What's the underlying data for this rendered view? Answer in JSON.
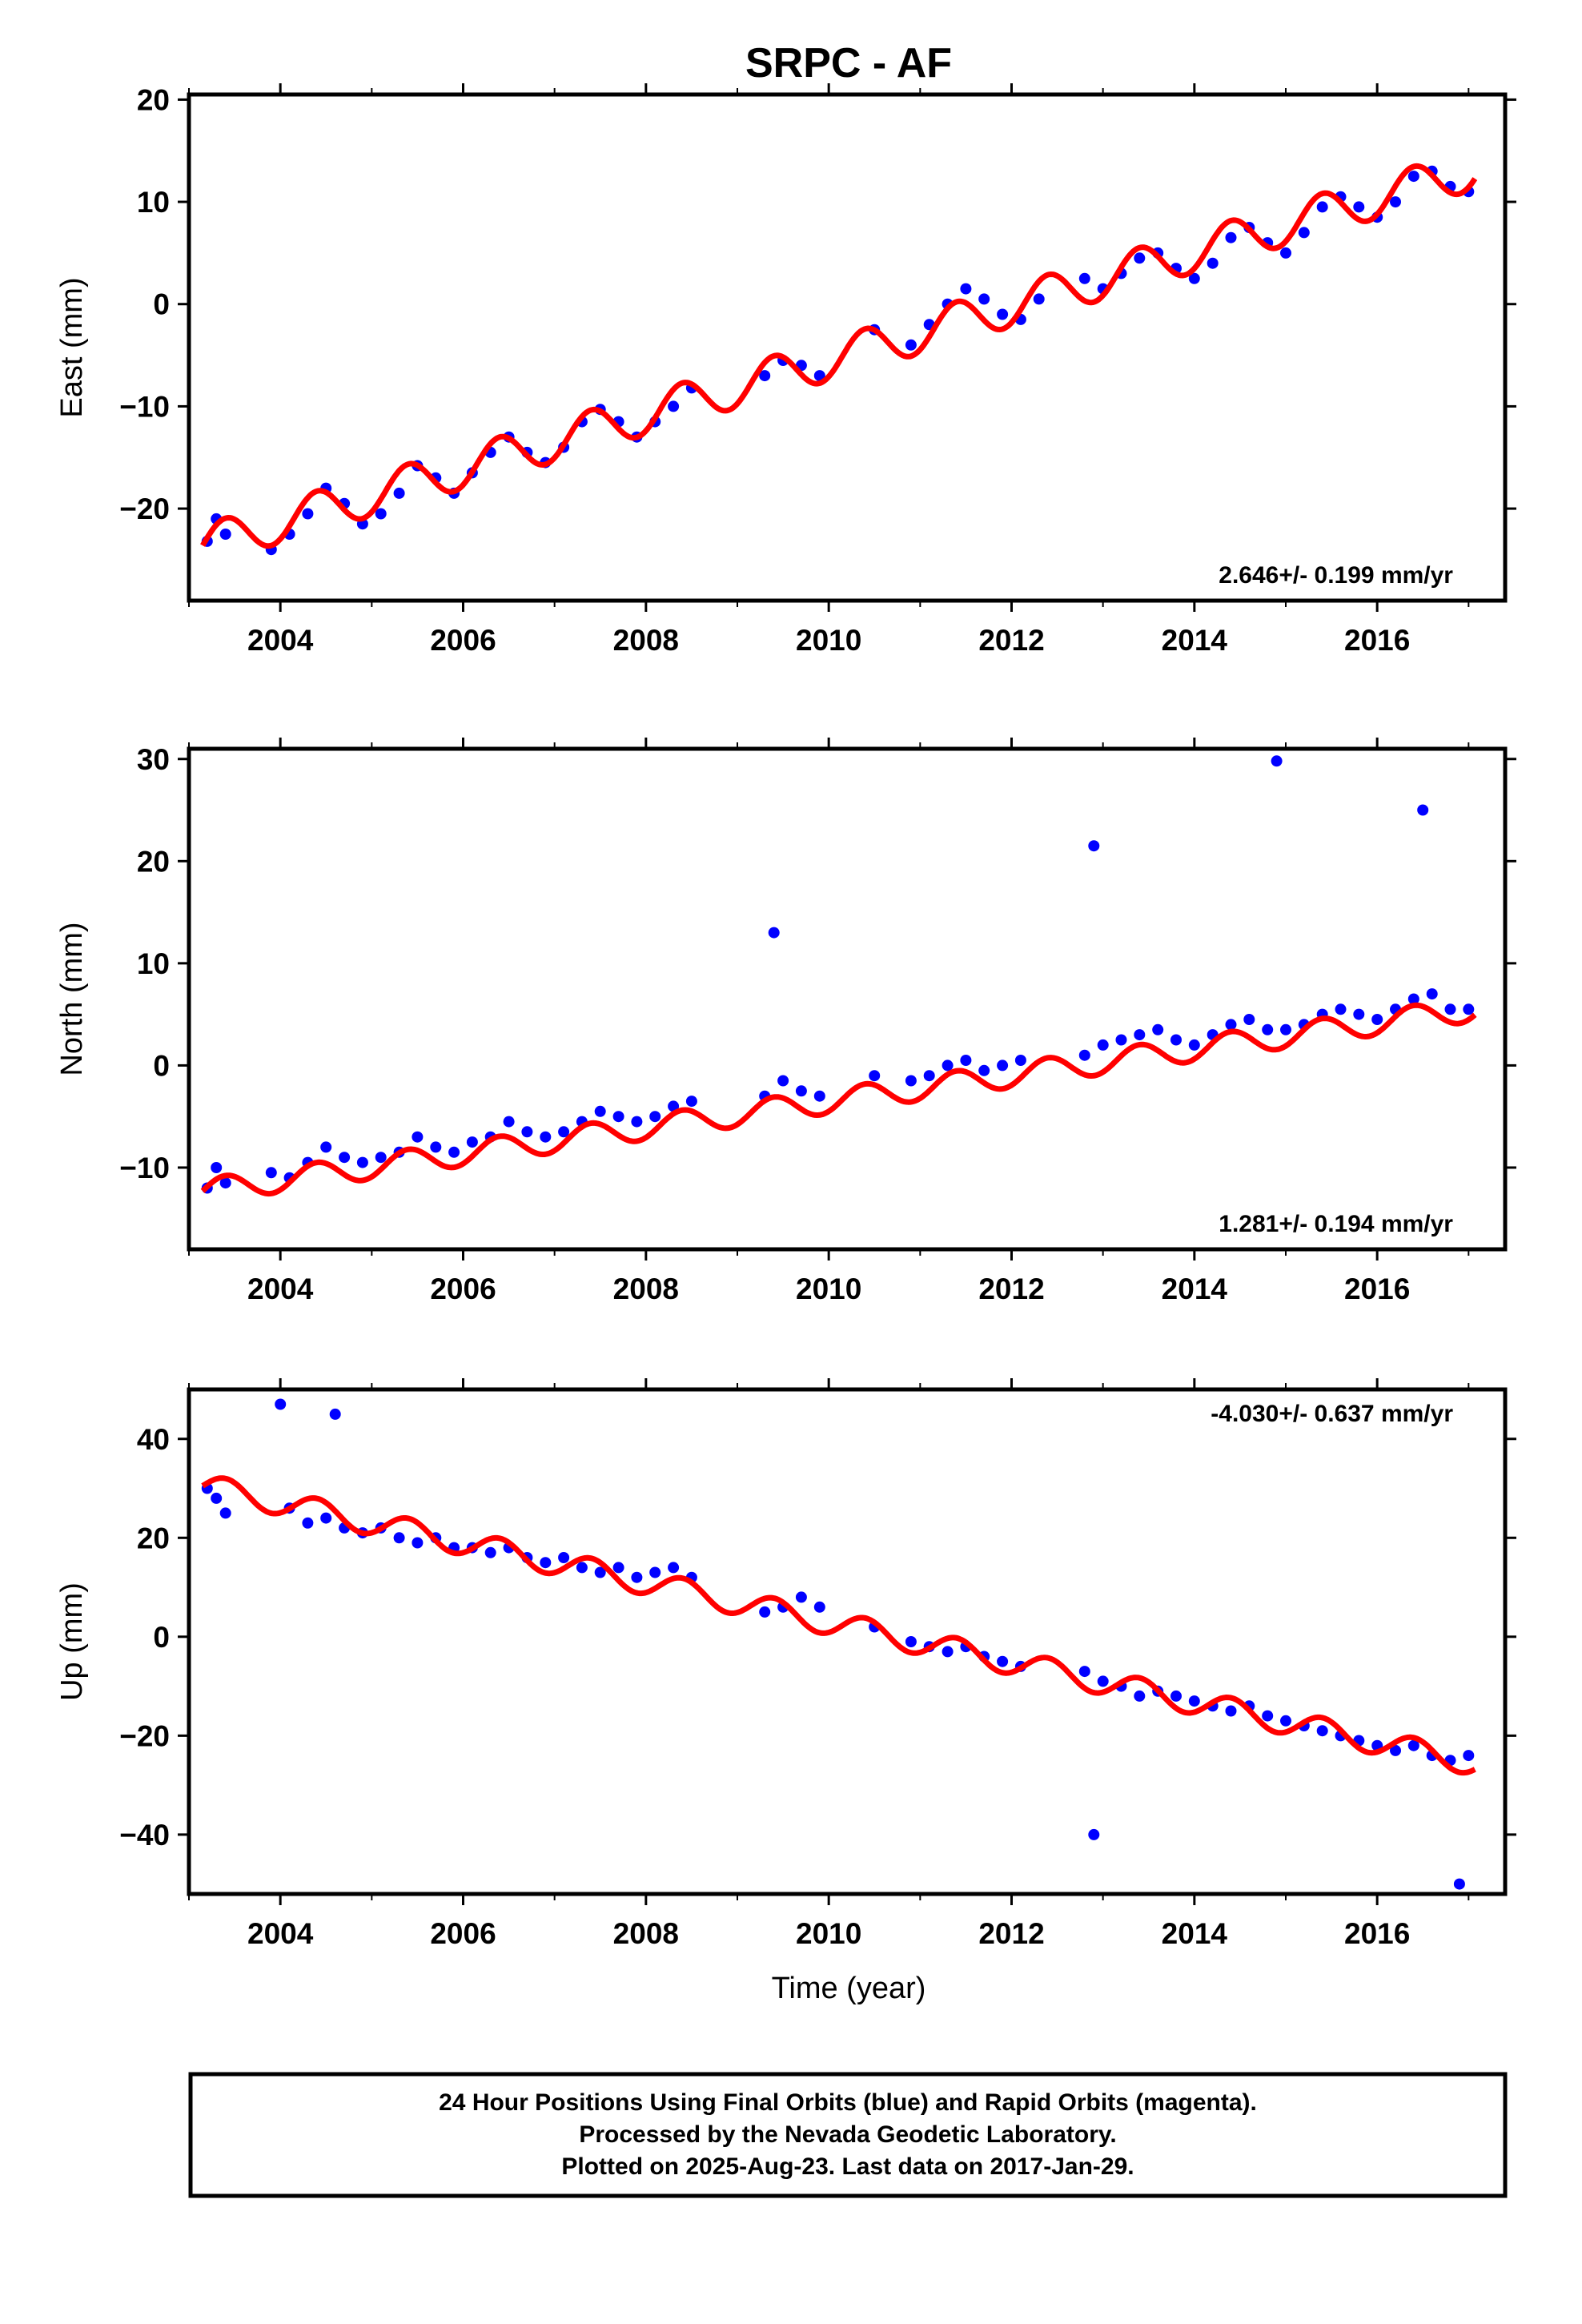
{
  "chart_data": {
    "title": "SRPC - AF",
    "type": "scatter",
    "xlabel": "Time (year)",
    "xlim": [
      2003.0,
      2017.4
    ],
    "x_ticks": [
      2004,
      2006,
      2008,
      2010,
      2012,
      2014,
      2016
    ],
    "x_tick_labels": [
      "2004",
      "2006",
      "2008",
      "2010",
      "2012",
      "2014",
      "2016"
    ],
    "colors": {
      "points": "#0000ff",
      "fit": "#ff0000",
      "axis": "#000000"
    },
    "footer": [
      "24 Hour Positions Using Final Orbits (blue) and Rapid Orbits (magenta).",
      "Processed by the Nevada Geodetic Laboratory.",
      "Plotted on 2025-Aug-23. Last data on 2017-Jan-29."
    ],
    "panels": [
      {
        "ylabel": "East (mm)",
        "ylim": [
          -29,
          20.5
        ],
        "y_ticks": [
          -20,
          -10,
          0,
          10,
          20
        ],
        "y_tick_labels": [
          "−20",
          "−10",
          "0",
          "10",
          "20"
        ],
        "rate_label": "2.646+/- 0.199 mm/yr",
        "rate_position": "bottom-right",
        "series": [
          {
            "name": "daily positions",
            "x": [
              2003.2,
              2003.3,
              2003.4,
              2003.9,
              2004.1,
              2004.3,
              2004.5,
              2004.7,
              2004.9,
              2005.1,
              2005.3,
              2005.5,
              2005.7,
              2005.9,
              2006.1,
              2006.3,
              2006.5,
              2006.7,
              2006.9,
              2007.1,
              2007.3,
              2007.5,
              2007.7,
              2007.9,
              2008.1,
              2008.3,
              2008.5,
              2009.3,
              2009.5,
              2009.7,
              2009.9,
              2010.5,
              2010.9,
              2011.1,
              2011.3,
              2011.5,
              2011.7,
              2011.9,
              2012.1,
              2012.3,
              2012.8,
              2013.0,
              2013.2,
              2013.4,
              2013.6,
              2013.8,
              2014.0,
              2014.2,
              2014.4,
              2014.6,
              2014.8,
              2015.0,
              2015.2,
              2015.4,
              2015.6,
              2015.8,
              2016.0,
              2016.2,
              2016.4,
              2016.6,
              2016.8,
              2017.0
            ],
            "y": [
              -23.2,
              -21.0,
              -22.5,
              -24.0,
              -22.5,
              -20.5,
              -18.0,
              -19.5,
              -21.5,
              -20.5,
              -18.5,
              -15.8,
              -17.0,
              -18.5,
              -16.5,
              -14.5,
              -13.0,
              -14.5,
              -15.5,
              -14.0,
              -11.5,
              -10.3,
              -11.5,
              -13.0,
              -11.5,
              -10.0,
              -8.2,
              -7.0,
              -5.5,
              -6.0,
              -7.0,
              -2.5,
              -4.0,
              -2.0,
              0.0,
              1.5,
              0.5,
              -1.0,
              -1.5,
              0.5,
              2.5,
              1.5,
              3.0,
              4.5,
              5.0,
              3.5,
              2.5,
              4.0,
              6.5,
              7.5,
              6.0,
              5.0,
              7.0,
              9.5,
              10.5,
              9.5,
              8.5,
              10.0,
              12.5,
              13.0,
              11.5,
              11.0
            ]
          },
          {
            "name": "model fit",
            "slope": 2.646,
            "y_at_2003_15": -23.6,
            "seasonal_amplitude": 2.0
          }
        ]
      },
      {
        "ylabel": "North (mm)",
        "ylim": [
          -18,
          31
        ],
        "y_ticks": [
          -10,
          0,
          10,
          20,
          30
        ],
        "y_tick_labels": [
          "−10",
          "0",
          "10",
          "20",
          "30"
        ],
        "rate_label": "1.281+/- 0.194 mm/yr",
        "rate_position": "bottom-right",
        "series": [
          {
            "name": "daily positions",
            "x": [
              2003.2,
              2003.3,
              2003.4,
              2003.9,
              2004.1,
              2004.3,
              2004.5,
              2004.7,
              2004.9,
              2005.1,
              2005.3,
              2005.5,
              2005.7,
              2005.9,
              2006.1,
              2006.3,
              2006.5,
              2006.7,
              2006.9,
              2007.1,
              2007.3,
              2007.5,
              2007.7,
              2007.9,
              2008.1,
              2008.3,
              2008.5,
              2009.3,
              2009.4,
              2009.5,
              2009.7,
              2009.9,
              2010.5,
              2010.9,
              2011.1,
              2011.3,
              2011.5,
              2011.7,
              2011.9,
              2012.1,
              2012.8,
              2012.9,
              2013.0,
              2013.2,
              2013.4,
              2013.6,
              2013.8,
              2014.0,
              2014.2,
              2014.4,
              2014.6,
              2014.8,
              2014.9,
              2015.0,
              2015.2,
              2015.4,
              2015.6,
              2015.8,
              2016.0,
              2016.2,
              2016.4,
              2016.5,
              2016.6,
              2016.8,
              2017.0
            ],
            "y": [
              -12.0,
              -10.0,
              -11.5,
              -10.5,
              -11.0,
              -9.5,
              -8.0,
              -9.0,
              -9.5,
              -9.0,
              -8.5,
              -7.0,
              -8.0,
              -8.5,
              -7.5,
              -7.0,
              -5.5,
              -6.5,
              -7.0,
              -6.5,
              -5.5,
              -4.5,
              -5.0,
              -5.5,
              -5.0,
              -4.0,
              -3.5,
              -3.0,
              13.0,
              -1.5,
              -2.5,
              -3.0,
              -1.0,
              -1.5,
              -1.0,
              0.0,
              0.5,
              -0.5,
              0.0,
              0.5,
              1.0,
              21.5,
              2.0,
              2.5,
              3.0,
              3.5,
              2.5,
              2.0,
              3.0,
              4.0,
              4.5,
              3.5,
              29.8,
              3.5,
              4.0,
              5.0,
              5.5,
              5.0,
              4.5,
              5.5,
              6.5,
              25.0,
              7.0,
              5.5,
              5.5
            ]
          },
          {
            "name": "model fit",
            "slope": 1.281,
            "y_at_2003_15": -12.3,
            "seasonal_amplitude": 1.2
          }
        ]
      },
      {
        "ylabel": "Up (mm)",
        "ylim": [
          -52,
          50
        ],
        "y_ticks": [
          -40,
          -20,
          0,
          20,
          40
        ],
        "y_tick_labels": [
          "−40",
          "−20",
          "0",
          "20",
          "40"
        ],
        "rate_label": "-4.030+/- 0.637 mm/yr",
        "rate_position": "top-right",
        "series": [
          {
            "name": "daily positions",
            "x": [
              2003.2,
              2003.3,
              2003.4,
              2004.0,
              2004.1,
              2004.3,
              2004.5,
              2004.6,
              2004.7,
              2004.9,
              2005.1,
              2005.3,
              2005.5,
              2005.7,
              2005.9,
              2006.1,
              2006.3,
              2006.5,
              2006.7,
              2006.9,
              2007.1,
              2007.3,
              2007.5,
              2007.7,
              2007.9,
              2008.1,
              2008.3,
              2008.5,
              2009.3,
              2009.5,
              2009.7,
              2009.9,
              2010.5,
              2010.9,
              2011.1,
              2011.3,
              2011.5,
              2011.7,
              2011.9,
              2012.1,
              2012.8,
              2012.9,
              2013.0,
              2013.2,
              2013.4,
              2013.6,
              2013.8,
              2014.0,
              2014.2,
              2014.4,
              2014.6,
              2014.8,
              2015.0,
              2015.2,
              2015.4,
              2015.6,
              2015.8,
              2016.0,
              2016.2,
              2016.4,
              2016.6,
              2016.8,
              2016.9,
              2017.0
            ],
            "y": [
              30.0,
              28.0,
              25.0,
              47.0,
              26.0,
              23.0,
              24.0,
              45.0,
              22.0,
              21.0,
              22.0,
              20.0,
              19.0,
              20.0,
              18.0,
              18.0,
              17.0,
              18.0,
              16.0,
              15.0,
              16.0,
              14.0,
              13.0,
              14.0,
              12.0,
              13.0,
              14.0,
              12.0,
              5.0,
              6.0,
              8.0,
              6.0,
              2.0,
              -1.0,
              -2.0,
              -3.0,
              -2.0,
              -4.0,
              -5.0,
              -6.0,
              -7.0,
              -40.0,
              -9.0,
              -10.0,
              -12.0,
              -11.0,
              -12.0,
              -13.0,
              -14.0,
              -15.0,
              -14.0,
              -16.0,
              -17.0,
              -18.0,
              -19.0,
              -20.0,
              -21.0,
              -22.0,
              -23.0,
              -22.0,
              -24.0,
              -25.0,
              -50.0,
              -24.0
            ]
          },
          {
            "name": "model fit",
            "slope": -4.03,
            "y_at_2003_15": 30.5,
            "seasonal_amplitude": 2.5
          }
        ]
      }
    ]
  }
}
